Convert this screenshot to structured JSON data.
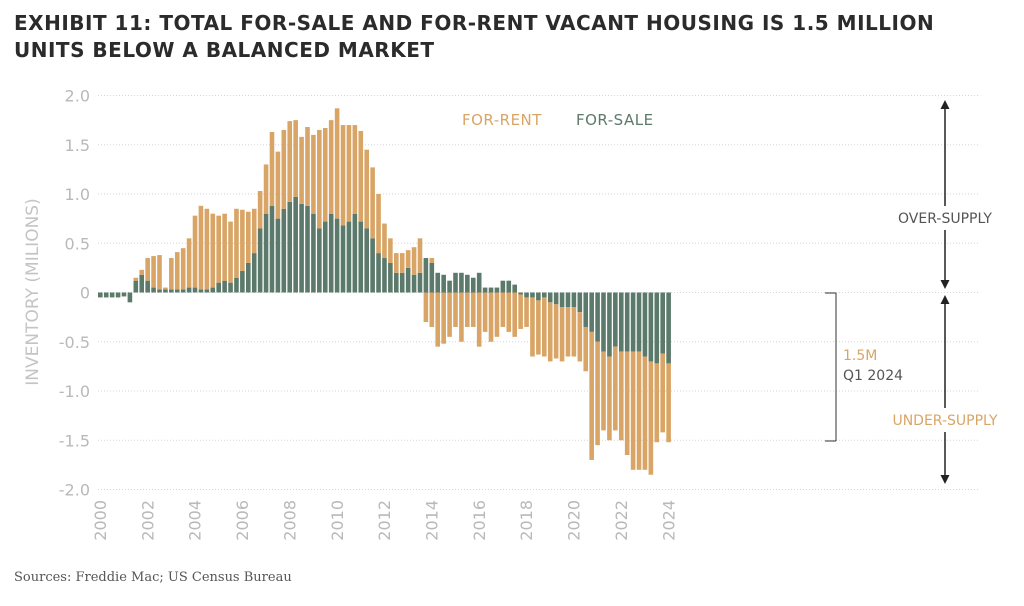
{
  "title_line1": "EXHIBIT 11: TOTAL FOR-SALE AND FOR-RENT VACANT HOUSING IS 1.5 MILLION",
  "title_line2": "UNITS BELOW A BALANCED MARKET",
  "source": "Sources: Freddie Mac; US Census Bureau",
  "colors": {
    "for_rent": "#d9a566",
    "for_sale": "#5c7a6c",
    "grid": "#d6d6d6",
    "tick": "#b9b9b9"
  },
  "annotations": {
    "over_supply": "OVER-SUPPLY",
    "under_supply": "UNDER-SUPPLY",
    "gap_value": "1.5M",
    "gap_period": "Q1 2024"
  },
  "chart_data": {
    "type": "bar",
    "stacked": "diverging",
    "title": "EXHIBIT 11: TOTAL FOR-SALE AND FOR-RENT VACANT HOUSING IS 1.5 MILLION UNITS BELOW A BALANCED MARKET",
    "ylabel": "INVENTORY (MILIONS)",
    "xlabel": "",
    "ylim": [
      -2.0,
      2.0
    ],
    "yticks": [
      2.0,
      1.5,
      1.0,
      0.5,
      0,
      -0.5,
      -1.0,
      -1.5,
      -2.0
    ],
    "ytick_labels": [
      "2.0",
      "1.5",
      "1.0",
      "0.5",
      "0",
      "-0.5",
      "-1.0",
      "-1.5",
      "-2.0"
    ],
    "xtick_labels": [
      "2000",
      "2002",
      "2004",
      "2006",
      "2008",
      "2010",
      "2012",
      "2014",
      "2016",
      "2018",
      "2020",
      "2022",
      "2024"
    ],
    "x_start": "2000 Q1",
    "x_end": "2024 Q1",
    "frequency": "quarterly",
    "grid": true,
    "legend_position": "top-center",
    "series": [
      {
        "name": "FOR-SALE",
        "color": "#5c7a6c",
        "values": [
          -0.05,
          -0.05,
          -0.05,
          -0.05,
          -0.04,
          -0.1,
          0.12,
          0.18,
          0.12,
          0.05,
          0.03,
          0.03,
          0.03,
          0.03,
          0.03,
          0.05,
          0.05,
          0.03,
          0.03,
          0.05,
          0.1,
          0.12,
          0.1,
          0.15,
          0.22,
          0.3,
          0.4,
          0.65,
          0.8,
          0.88,
          0.75,
          0.85,
          0.92,
          0.97,
          0.9,
          0.88,
          0.8,
          0.65,
          0.72,
          0.8,
          0.75,
          0.68,
          0.72,
          0.8,
          0.72,
          0.65,
          0.55,
          0.4,
          0.35,
          0.3,
          0.2,
          0.2,
          0.25,
          0.18,
          0.2,
          0.35,
          0.3,
          0.2,
          0.18,
          0.12,
          0.2,
          0.2,
          0.18,
          0.15,
          0.2,
          0.05,
          0.05,
          0.05,
          0.12,
          0.12,
          0.08,
          -0.02,
          -0.05,
          -0.05,
          -0.08,
          -0.05,
          -0.1,
          -0.12,
          -0.15,
          -0.15,
          -0.15,
          -0.2,
          -0.35,
          -0.4,
          -0.5,
          -0.6,
          -0.65,
          -0.55,
          -0.6,
          -0.6,
          -0.6,
          -0.6,
          -0.65,
          -0.7,
          -0.72,
          -0.62,
          -0.72
        ]
      },
      {
        "name": "FOR-RENT",
        "color": "#d9a566",
        "values": [
          -0.06,
          -0.12,
          -0.06,
          -0.12,
          0.0,
          0.0,
          0.03,
          0.05,
          0.23,
          0.32,
          0.35,
          0.02,
          0.32,
          0.38,
          0.42,
          0.5,
          0.73,
          0.85,
          0.82,
          0.75,
          0.68,
          0.68,
          0.62,
          0.7,
          0.62,
          0.52,
          0.45,
          0.38,
          0.5,
          0.75,
          0.68,
          0.8,
          0.82,
          0.78,
          0.68,
          0.8,
          0.8,
          1.0,
          0.95,
          0.95,
          1.12,
          1.02,
          0.98,
          0.9,
          0.92,
          0.8,
          0.72,
          0.6,
          0.35,
          0.25,
          0.2,
          0.2,
          0.18,
          0.28,
          0.35,
          0.0,
          0.05,
          0.0,
          0.0,
          0.0,
          0.0,
          0.0,
          0.0,
          0.0,
          0.0,
          0.0,
          0.0,
          0.0,
          0.0,
          0.0,
          0.0,
          0.0,
          0.0,
          0.0,
          0.0,
          0.0,
          0.0,
          0.0,
          0.0,
          0.0,
          0.0,
          0.0,
          0.0,
          0.0,
          0.0,
          0.0,
          0.0,
          0.0,
          0.0,
          0.0,
          0.0,
          0.0,
          0.0,
          0.0,
          0.0,
          0.0,
          0.0
        ],
        "values_below_zero_note": "",
        "negative_values": [
          0.0,
          0.0,
          0.0,
          0.0,
          0.0,
          0.0,
          0.0,
          0.0,
          0.0,
          0.0,
          0.0,
          0.0,
          0.0,
          0.0,
          0.0,
          0.0,
          0.0,
          0.0,
          0.0,
          0.0,
          0.0,
          0.0,
          0.0,
          0.0,
          0.0,
          0.0,
          0.0,
          0.0,
          0.0,
          0.0,
          0.0,
          0.0,
          0.0,
          0.0,
          0.0,
          0.0,
          0.0,
          0.0,
          0.0,
          0.0,
          0.0,
          0.0,
          0.0,
          0.0,
          0.0,
          0.0,
          0.0,
          0.0,
          0.0,
          0.0,
          0.0,
          0.0,
          0.0,
          0.0,
          0.0,
          -0.3,
          -0.35,
          -0.55,
          -0.52,
          -0.45,
          -0.35,
          -0.5,
          -0.35,
          -0.35,
          -0.55,
          -0.4,
          -0.5,
          -0.45,
          -0.35,
          -0.4,
          -0.45,
          -0.35,
          -0.3,
          -0.6,
          -0.55,
          -0.6,
          -0.6,
          -0.55,
          -0.55,
          -0.5,
          -0.5,
          -0.5,
          -0.45,
          -1.3,
          -1.05,
          -0.8,
          -0.85,
          -0.85,
          -0.9,
          -1.05,
          -1.2,
          -1.2,
          -1.15,
          -1.15,
          -0.8,
          -0.8,
          -0.8
        ]
      }
    ]
  }
}
